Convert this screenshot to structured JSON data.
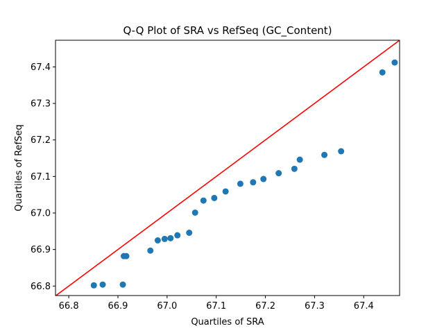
{
  "chart_data": {
    "type": "scatter",
    "title": "Q-Q Plot of SRA vs RefSeq (GC_Content)",
    "xlabel": "Quartiles of SRA",
    "ylabel": "Quartiles of RefSeq",
    "xlim": [
      66.773,
      67.473
    ],
    "ylim": [
      66.774,
      67.473
    ],
    "xticks": [
      66.8,
      66.9,
      67.0,
      67.1,
      67.2,
      67.3,
      67.4
    ],
    "yticks": [
      66.8,
      66.9,
      67.0,
      67.1,
      67.2,
      67.3,
      67.4
    ],
    "grid": false,
    "series": [
      {
        "color": "#1f77b4",
        "x": [
          66.851,
          66.869,
          66.91,
          66.912,
          66.917,
          66.966,
          66.981,
          66.995,
          67.007,
          67.021,
          67.045,
          67.057,
          67.074,
          67.096,
          67.119,
          67.149,
          67.175,
          67.196,
          67.227,
          67.259,
          67.27,
          67.32,
          67.354,
          67.438,
          67.463
        ],
        "y": [
          66.802,
          66.804,
          66.804,
          66.882,
          66.882,
          66.897,
          66.925,
          66.929,
          66.931,
          66.939,
          66.946,
          67.001,
          67.034,
          67.041,
          67.059,
          67.08,
          67.084,
          67.093,
          67.109,
          67.121,
          67.146,
          67.159,
          67.169,
          67.385,
          67.412
        ]
      }
    ],
    "reference_line": {
      "color": "#ff0000",
      "x": [
        66.773,
        67.473
      ],
      "y": [
        66.773,
        67.473
      ]
    }
  }
}
